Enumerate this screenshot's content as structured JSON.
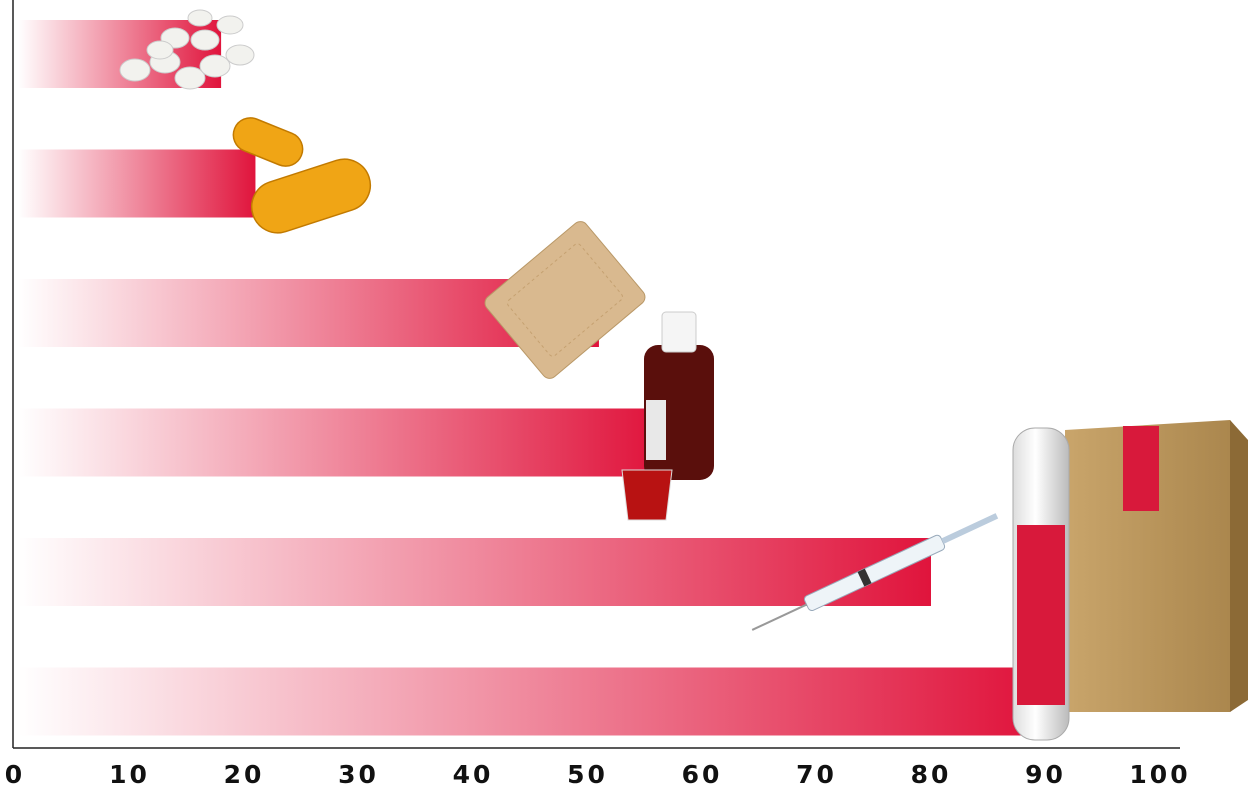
{
  "chart_data": {
    "type": "hbar",
    "categories": [
      null,
      null,
      null,
      null,
      null,
      null
    ],
    "values": [
      18,
      21,
      51,
      56,
      80,
      89
    ],
    "color": "#e0143c",
    "xlim": [
      0,
      100
    ],
    "xticks": [
      0,
      10,
      20,
      30,
      40,
      50,
      60,
      70,
      80,
      90,
      100
    ]
  }
}
